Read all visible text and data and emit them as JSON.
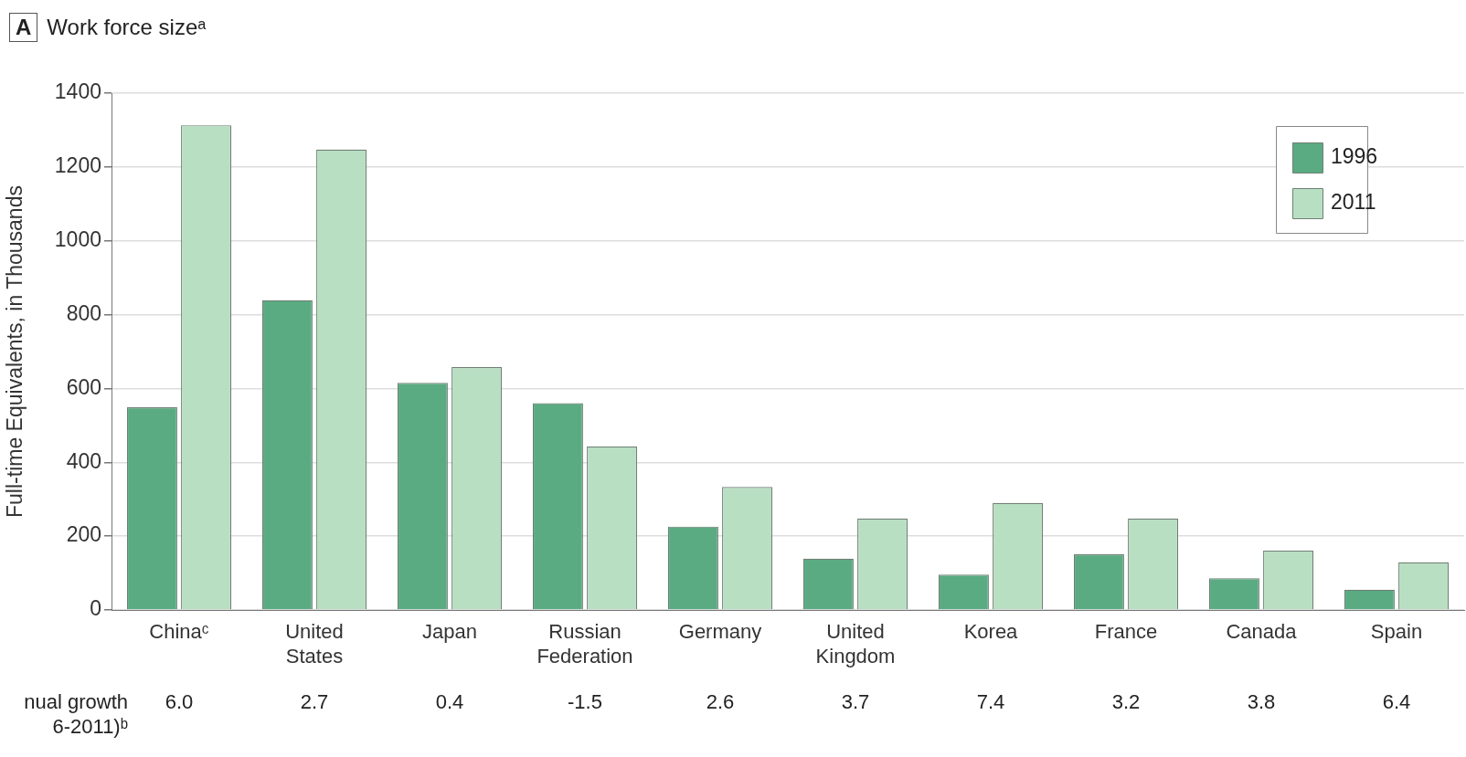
{
  "chart_data": {
    "type": "bar",
    "title": "Work force sizeᵃ",
    "ylabel": "Full-time Equivalents, in Thousands",
    "categories": [
      "Chinaᶜ",
      "United States",
      "Japan",
      "Russian Federation",
      "Germany",
      "United Kingdom",
      "Korea",
      "France",
      "Canada",
      "Spain"
    ],
    "series": [
      {
        "name": "1996",
        "color": "#5aab82",
        "values": [
          549,
          839,
          615,
          560,
          226,
          139,
          96,
          151,
          86,
          55
        ]
      },
      {
        "name": "2011",
        "color": "#b9dfc3",
        "values": [
          1313,
          1247,
          658,
          443,
          333,
          248,
          290,
          248,
          161,
          129
        ]
      }
    ],
    "ylim": [
      0,
      1400
    ],
    "yticks": [
      0,
      200,
      400,
      600,
      800,
      1000,
      1200,
      1400
    ],
    "grid": "y",
    "legend": "top right",
    "annotations": [
      "A",
      "nual growth\n6-2011)ᵇ",
      "6.0",
      "2.7",
      "0.4",
      "-1.5",
      "2.6",
      "3.7",
      "7.4",
      "3.2",
      "3.8",
      "6.4"
    ]
  }
}
